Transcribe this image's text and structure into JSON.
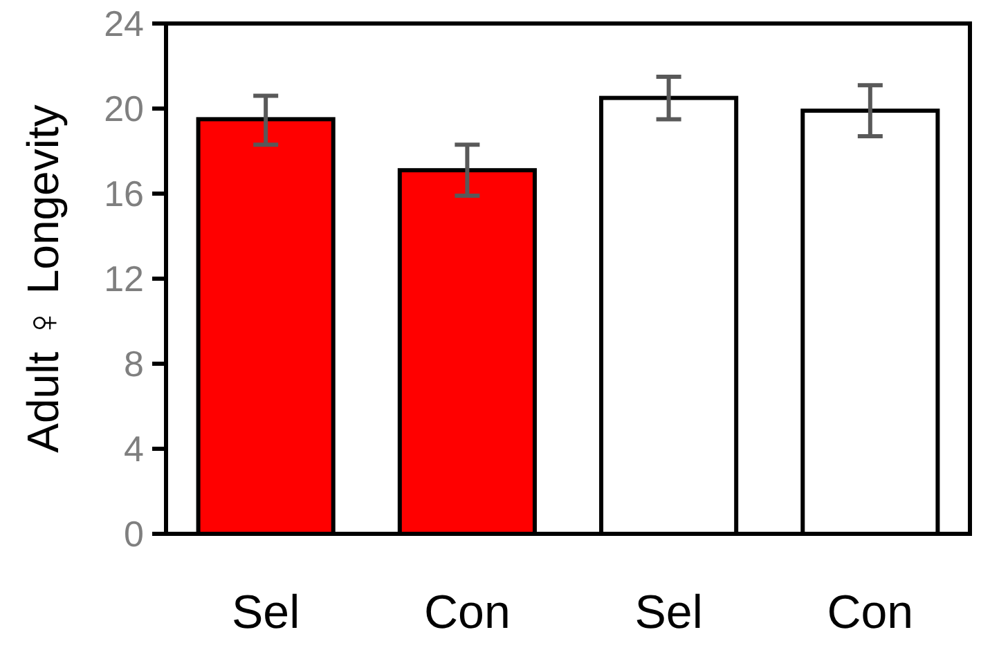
{
  "chart_data": {
    "type": "bar",
    "ylabel": "Adult ♀ Longevity",
    "categories": [
      "Sel",
      "Con",
      "Sel",
      "Con"
    ],
    "values": [
      19.5,
      17.1,
      20.5,
      19.9
    ],
    "colors": [
      "#ff0000",
      "#ff0000",
      "#ffffff",
      "#ffffff"
    ],
    "errors": [
      [
        18.3,
        20.6
      ],
      [
        15.9,
        18.3
      ],
      [
        19.5,
        21.5
      ],
      [
        18.7,
        21.1
      ]
    ],
    "ylim": [
      0,
      24
    ],
    "yticks": [
      0,
      4,
      8,
      12,
      16,
      20,
      24
    ]
  }
}
